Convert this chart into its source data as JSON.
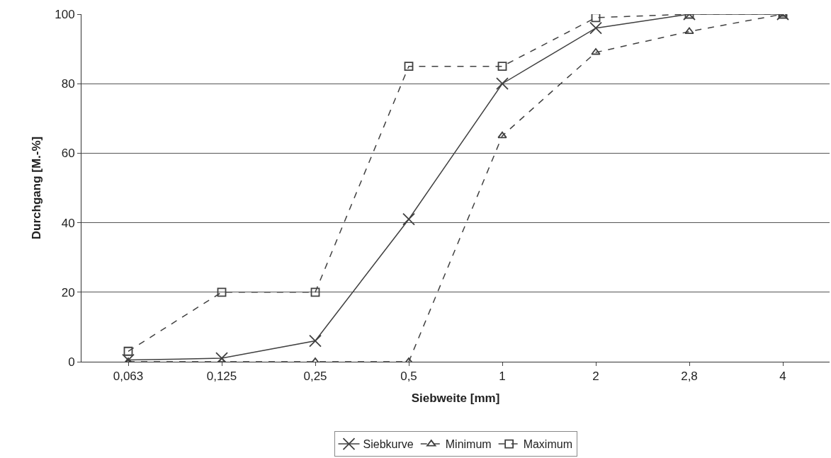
{
  "chart_data": {
    "type": "line",
    "xlabel": "Siebweite [mm]",
    "ylabel": "Durchgang [M.-%]",
    "categories": [
      "0,063",
      "0,125",
      "0,25",
      "0,5",
      "1",
      "2",
      "2,8",
      "4"
    ],
    "series": [
      {
        "name": "Siebkurve",
        "color": "#404040",
        "marker": "cross",
        "line_style": "solid",
        "values": [
          0.5,
          1,
          6,
          41,
          80,
          96,
          100,
          100
        ]
      },
      {
        "name": "Minimum",
        "color": "#404040",
        "marker": "triangle",
        "line_style": "dashed",
        "values": [
          0,
          0,
          0,
          0,
          65,
          89,
          95,
          100
        ]
      },
      {
        "name": "Maximum",
        "color": "#404040",
        "marker": "square",
        "line_style": "dashed",
        "values": [
          3,
          20,
          20,
          85,
          85,
          99,
          100,
          100
        ]
      }
    ],
    "ylim": [
      0,
      100
    ],
    "yticks": [
      0,
      20,
      40,
      60,
      80,
      100
    ],
    "grid": "y",
    "legend": "bottom"
  }
}
